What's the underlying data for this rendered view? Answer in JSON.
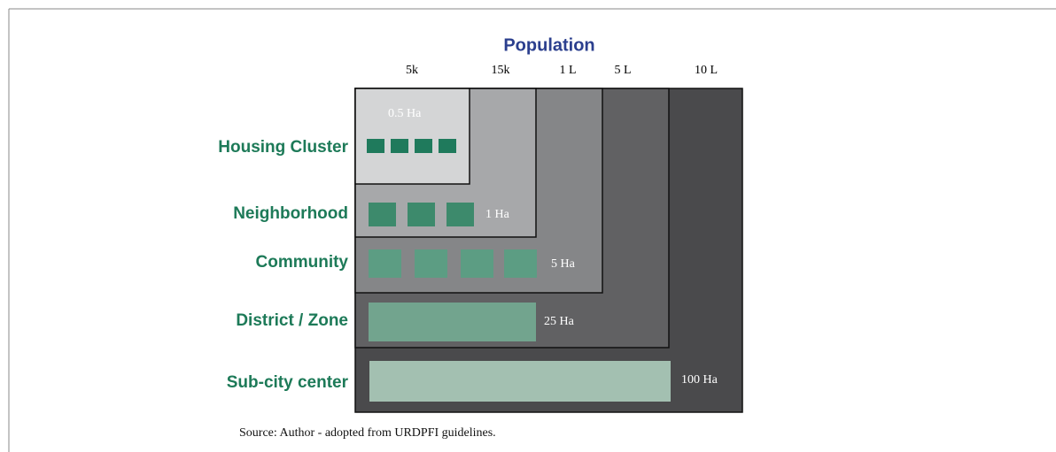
{
  "title": "Population",
  "columns": [
    "5k",
    "15k",
    "1 L",
    "5 L",
    "10 L"
  ],
  "rows": [
    {
      "label": "Housing Cluster",
      "area": "0.5 Ha"
    },
    {
      "label": "Neighborhood",
      "area": "1 Ha"
    },
    {
      "label": "Community",
      "area": "5 Ha"
    },
    {
      "label": "District / Zone",
      "area": "25 Ha"
    },
    {
      "label": "Sub-city center",
      "area": "100 Ha"
    }
  ],
  "source": "Source: Author - adopted from URDPFI guidelines."
}
